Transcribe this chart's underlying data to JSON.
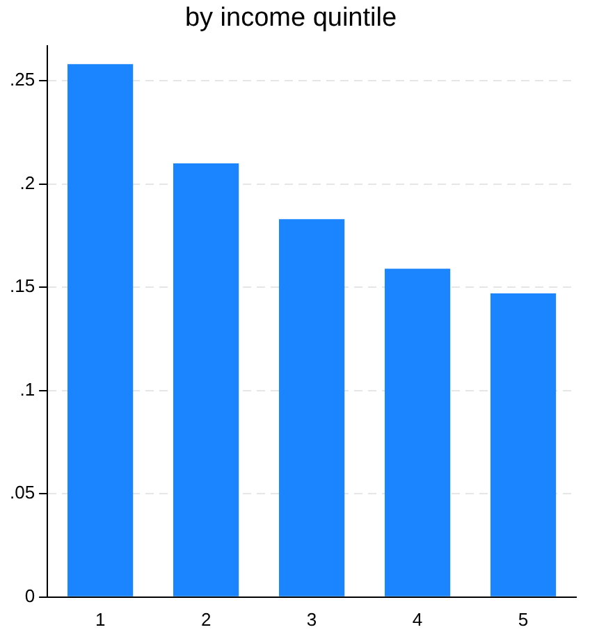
{
  "chart_data": {
    "type": "bar",
    "title": "by income quintile",
    "categories": [
      "1",
      "2",
      "3",
      "4",
      "5"
    ],
    "values": [
      0.258,
      0.21,
      0.183,
      0.159,
      0.147
    ],
    "color": "#1a85ff",
    "ylim": [
      0,
      0.267
    ],
    "yticks": [
      {
        "value": 0,
        "label": "0"
      },
      {
        "value": 0.05,
        "label": ".05"
      },
      {
        "value": 0.1,
        "label": ".1"
      },
      {
        "value": 0.15,
        "label": ".15"
      },
      {
        "value": 0.2,
        "label": ".2"
      },
      {
        "value": 0.25,
        "label": ".25"
      }
    ],
    "grid": "y"
  }
}
